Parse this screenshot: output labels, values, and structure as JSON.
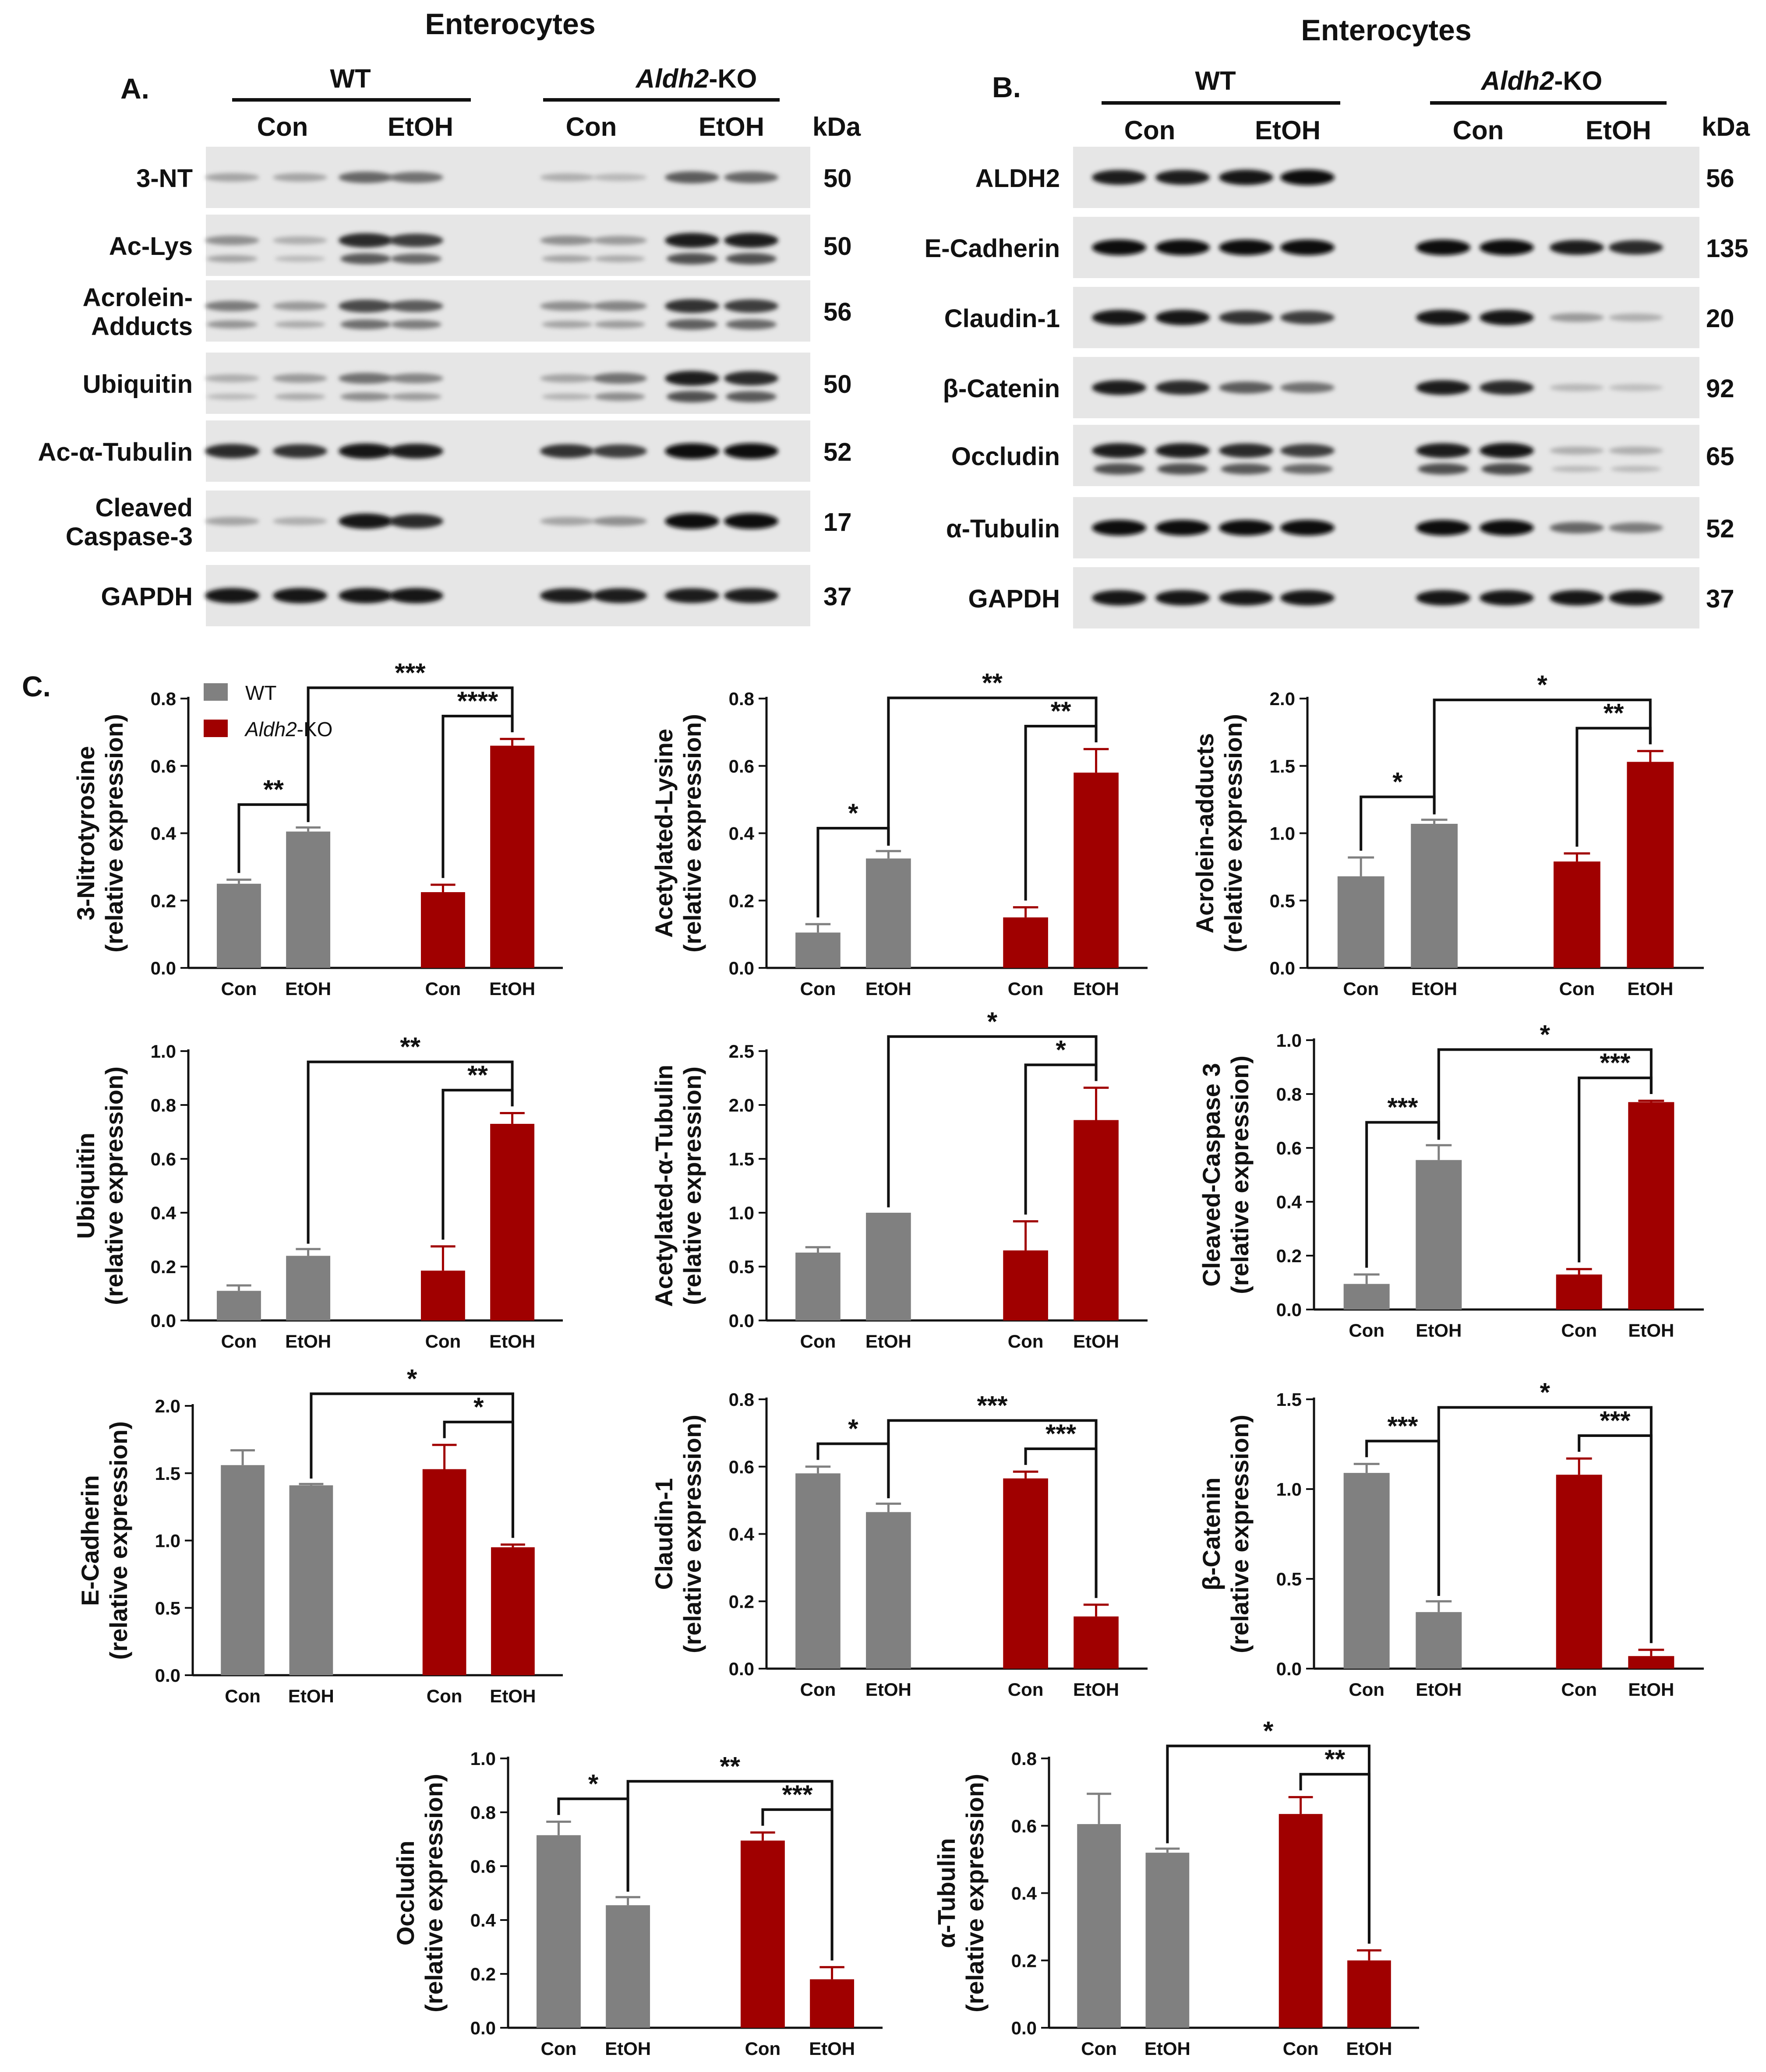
{
  "panel_a": {
    "letter": "A.",
    "title": "Enterocytes",
    "group_wt": "WT",
    "group_ko": "Aldh2-KO",
    "group_ko_italic": "Aldh2",
    "group_ko_suffix": "-KO",
    "con_label": "Con",
    "etoh_label": "EtOH",
    "kda_label": "kDa",
    "blots": [
      {
        "label_lines": [
          "3-NT"
        ],
        "kda": "50",
        "intensity": [
          0.25,
          0.25,
          0.55,
          0.5,
          0.2,
          0.15,
          0.6,
          0.55
        ],
        "double": false
      },
      {
        "label_lines": [
          "Ac-Lys"
        ],
        "kda": "50",
        "intensity": [
          0.35,
          0.2,
          0.85,
          0.75,
          0.35,
          0.3,
          0.9,
          0.9
        ],
        "double": true
      },
      {
        "label_lines": [
          "Acrolein-",
          "Adducts"
        ],
        "kda": "56",
        "intensity": [
          0.45,
          0.3,
          0.7,
          0.6,
          0.35,
          0.4,
          0.8,
          0.75
        ],
        "double": true
      },
      {
        "label_lines": [
          "Ubiquitin"
        ],
        "kda": "50",
        "intensity": [
          0.2,
          0.3,
          0.5,
          0.4,
          0.25,
          0.5,
          0.9,
          0.85
        ],
        "double": true
      },
      {
        "label_lines": [
          "Ac-α-Tubulin"
        ],
        "kda": "52",
        "intensity": [
          0.85,
          0.8,
          0.95,
          0.9,
          0.8,
          0.75,
          1.0,
          1.0
        ],
        "double": false
      },
      {
        "label_lines": [
          "Cleaved",
          "Caspase-3"
        ],
        "kda": "17",
        "intensity": [
          0.25,
          0.2,
          0.95,
          0.85,
          0.25,
          0.35,
          1.0,
          1.0
        ],
        "double": false
      },
      {
        "label_lines": [
          "GAPDH"
        ],
        "kda": "37",
        "intensity": [
          0.95,
          0.95,
          0.95,
          0.95,
          0.9,
          0.9,
          0.9,
          0.9
        ],
        "double": false
      }
    ]
  },
  "panel_b": {
    "letter": "B.",
    "title": "Enterocytes",
    "group_wt": "WT",
    "group_ko": "Aldh2-KO",
    "group_ko_italic": "Aldh2",
    "group_ko_suffix": "-KO",
    "con_label": "Con",
    "etoh_label": "EtOH",
    "kda_label": "kDa",
    "blots": [
      {
        "label_lines": [
          "ALDH2"
        ],
        "kda": "56",
        "intensity": [
          0.9,
          0.9,
          0.95,
          1.0,
          0.0,
          0.0,
          0.0,
          0.0
        ],
        "double": false
      },
      {
        "label_lines": [
          "E-Cadherin"
        ],
        "kda": "135",
        "intensity": [
          1.0,
          1.0,
          1.0,
          1.0,
          1.0,
          1.0,
          0.9,
          0.85
        ],
        "double": false
      },
      {
        "label_lines": [
          "Claudin-1"
        ],
        "kda": "20",
        "intensity": [
          0.95,
          0.95,
          0.8,
          0.75,
          0.95,
          0.95,
          0.3,
          0.2
        ],
        "double": false
      },
      {
        "label_lines": [
          "β-Catenin"
        ],
        "kda": "92",
        "intensity": [
          0.9,
          0.85,
          0.6,
          0.5,
          0.9,
          0.85,
          0.15,
          0.12
        ],
        "double": false
      },
      {
        "label_lines": [
          "Occludin"
        ],
        "kda": "65",
        "intensity": [
          0.9,
          0.9,
          0.85,
          0.75,
          0.9,
          0.95,
          0.2,
          0.2
        ],
        "double": true
      },
      {
        "label_lines": [
          "α-Tubulin"
        ],
        "kda": "52",
        "intensity": [
          1.0,
          1.0,
          1.0,
          1.0,
          1.0,
          1.0,
          0.55,
          0.45
        ],
        "double": false
      },
      {
        "label_lines": [
          "GAPDH"
        ],
        "kda": "37",
        "intensity": [
          0.95,
          0.95,
          0.95,
          0.95,
          0.95,
          0.95,
          0.95,
          0.95
        ],
        "double": false
      }
    ]
  },
  "panel_c": {
    "letter": "C.",
    "legend": [
      {
        "name": "WT",
        "color": "#808080"
      },
      {
        "name": "Aldh2-KO",
        "italic": "Aldh2",
        "suffix": "-KO",
        "color": "#a00000"
      }
    ]
  },
  "colors": {
    "wt": "#808080",
    "ko": "#a00000",
    "text": "#111111"
  },
  "chart_data": [
    {
      "type": "bar",
      "ylabel": "3-Nitrotyrosine",
      "ylabel2": "(relative expression)",
      "categories": [
        "Con",
        "EtOH",
        "Con",
        "EtOH"
      ],
      "groups": [
        "WT",
        "WT",
        "Aldh2-KO",
        "Aldh2-KO"
      ],
      "values": [
        0.25,
        0.405,
        0.225,
        0.66
      ],
      "errors": [
        0.012,
        0.012,
        0.022,
        0.02
      ],
      "ylim": [
        0,
        0.8
      ],
      "yticks": [
        "0.0",
        "0.2",
        "0.4",
        "0.6",
        "0.8"
      ],
      "tickvals": [
        0,
        0.2,
        0.4,
        0.6,
        0.8
      ],
      "annotations": [
        {
          "from": 0,
          "to": 1,
          "label": "**"
        },
        {
          "from": 2,
          "to": 3,
          "label": "****"
        },
        {
          "from": 1,
          "to": 3,
          "label": "***"
        }
      ]
    },
    {
      "type": "bar",
      "ylabel": "Acetylated-Lysine",
      "ylabel2": "(relative expression)",
      "categories": [
        "Con",
        "EtOH",
        "Con",
        "EtOH"
      ],
      "groups": [
        "WT",
        "WT",
        "Aldh2-KO",
        "Aldh2-KO"
      ],
      "values": [
        0.105,
        0.325,
        0.15,
        0.58
      ],
      "errors": [
        0.025,
        0.022,
        0.03,
        0.07
      ],
      "ylim": [
        0,
        0.8
      ],
      "yticks": [
        "0.0",
        "0.2",
        "0.4",
        "0.6",
        "0.8"
      ],
      "tickvals": [
        0,
        0.2,
        0.4,
        0.6,
        0.8
      ],
      "annotations": [
        {
          "from": 0,
          "to": 1,
          "label": "*"
        },
        {
          "from": 2,
          "to": 3,
          "label": "**"
        },
        {
          "from": 1,
          "to": 3,
          "label": "**"
        }
      ]
    },
    {
      "type": "bar",
      "ylabel": "Acrolein-adducts",
      "ylabel2": "(relative expression)",
      "categories": [
        "Con",
        "EtOH",
        "Con",
        "EtOH"
      ],
      "groups": [
        "WT",
        "WT",
        "Aldh2-KO",
        "Aldh2-KO"
      ],
      "values": [
        0.68,
        1.07,
        0.79,
        1.53
      ],
      "errors": [
        0.14,
        0.03,
        0.06,
        0.08
      ],
      "ylim": [
        0,
        2.0
      ],
      "yticks": [
        "0.0",
        "0.5",
        "1.0",
        "1.5",
        "2.0"
      ],
      "tickvals": [
        0,
        0.5,
        1.0,
        1.5,
        2.0
      ],
      "annotations": [
        {
          "from": 0,
          "to": 1,
          "label": "*"
        },
        {
          "from": 2,
          "to": 3,
          "label": "**"
        },
        {
          "from": 1,
          "to": 3,
          "label": "*"
        }
      ]
    },
    {
      "type": "bar",
      "ylabel": "Ubiquitin",
      "ylabel2": "(relative expression)",
      "categories": [
        "Con",
        "EtOH",
        "Con",
        "EtOH"
      ],
      "groups": [
        "WT",
        "WT",
        "Aldh2-KO",
        "Aldh2-KO"
      ],
      "values": [
        0.11,
        0.24,
        0.185,
        0.73
      ],
      "errors": [
        0.02,
        0.025,
        0.09,
        0.04
      ],
      "ylim": [
        0,
        1.0
      ],
      "yticks": [
        "0.0",
        "0.2",
        "0.4",
        "0.6",
        "0.8",
        "1.0"
      ],
      "tickvals": [
        0,
        0.2,
        0.4,
        0.6,
        0.8,
        1.0
      ],
      "annotations": [
        {
          "from": 2,
          "to": 3,
          "label": "**"
        },
        {
          "from": 1,
          "to": 3,
          "label": "**"
        }
      ]
    },
    {
      "type": "bar",
      "ylabel": "Acetylated-α-Tubulin",
      "ylabel2": "(relative expression)",
      "categories": [
        "Con",
        "EtOH",
        "Con",
        "EtOH"
      ],
      "groups": [
        "WT",
        "WT",
        "Aldh2-KO",
        "Aldh2-KO"
      ],
      "values": [
        0.63,
        1.0,
        0.65,
        1.86
      ],
      "errors": [
        0.05,
        0.0,
        0.27,
        0.3
      ],
      "ylim": [
        0,
        2.5
      ],
      "yticks": [
        "0.0",
        "0.5",
        "1.0",
        "1.5",
        "2.0",
        "2.5"
      ],
      "tickvals": [
        0,
        0.5,
        1.0,
        1.5,
        2.0,
        2.5
      ],
      "annotations": [
        {
          "from": 2,
          "to": 3,
          "label": "*"
        },
        {
          "from": 1,
          "to": 3,
          "label": "*"
        }
      ]
    },
    {
      "type": "bar",
      "ylabel": "Cleaved-Caspase 3",
      "ylabel2": "(relative expression)",
      "categories": [
        "Con",
        "EtOH",
        "Con",
        "EtOH"
      ],
      "groups": [
        "WT",
        "WT",
        "Aldh2-KO",
        "Aldh2-KO"
      ],
      "values": [
        0.095,
        0.555,
        0.13,
        0.77
      ],
      "errors": [
        0.035,
        0.055,
        0.02,
        0.005
      ],
      "ylim": [
        0,
        1.0
      ],
      "yticks": [
        "0.0",
        "0.2",
        "0.4",
        "0.6",
        "0.8",
        "1.0"
      ],
      "tickvals": [
        0,
        0.2,
        0.4,
        0.6,
        0.8,
        1.0
      ],
      "annotations": [
        {
          "from": 0,
          "to": 1,
          "label": "***"
        },
        {
          "from": 2,
          "to": 3,
          "label": "***"
        },
        {
          "from": 1,
          "to": 3,
          "label": "*"
        }
      ]
    },
    {
      "type": "bar",
      "ylabel": "E-Cadherin",
      "ylabel2": "(relative expression)",
      "categories": [
        "Con",
        "EtOH",
        "Con",
        "EtOH"
      ],
      "groups": [
        "WT",
        "WT",
        "Aldh2-KO",
        "Aldh2-KO"
      ],
      "values": [
        1.56,
        1.41,
        1.53,
        0.95
      ],
      "errors": [
        0.11,
        0.01,
        0.18,
        0.02
      ],
      "ylim": [
        0,
        2.0
      ],
      "yticks": [
        "0.0",
        "0.5",
        "1.0",
        "1.5",
        "2.0"
      ],
      "tickvals": [
        0,
        0.5,
        1.0,
        1.5,
        2.0
      ],
      "annotations": [
        {
          "from": 2,
          "to": 3,
          "label": "*"
        },
        {
          "from": 1,
          "to": 3,
          "label": "*"
        }
      ]
    },
    {
      "type": "bar",
      "ylabel": "Claudin-1",
      "ylabel2": "(relative expression)",
      "categories": [
        "Con",
        "EtOH",
        "Con",
        "EtOH"
      ],
      "groups": [
        "WT",
        "WT",
        "Aldh2-KO",
        "Aldh2-KO"
      ],
      "values": [
        0.58,
        0.465,
        0.565,
        0.155
      ],
      "errors": [
        0.02,
        0.025,
        0.02,
        0.035
      ],
      "ylim": [
        0,
        0.8
      ],
      "yticks": [
        "0.0",
        "0.2",
        "0.4",
        "0.6",
        "0.8"
      ],
      "tickvals": [
        0,
        0.2,
        0.4,
        0.6,
        0.8
      ],
      "annotations": [
        {
          "from": 0,
          "to": 1,
          "label": "*"
        },
        {
          "from": 2,
          "to": 3,
          "label": "***"
        },
        {
          "from": 1,
          "to": 3,
          "label": "***"
        }
      ]
    },
    {
      "type": "bar",
      "ylabel": "β-Catenin",
      "ylabel2": "(relative expression)",
      "categories": [
        "Con",
        "EtOH",
        "Con",
        "EtOH"
      ],
      "groups": [
        "WT",
        "WT",
        "Aldh2-KO",
        "Aldh2-KO"
      ],
      "values": [
        1.09,
        0.315,
        1.08,
        0.07
      ],
      "errors": [
        0.05,
        0.06,
        0.09,
        0.035
      ],
      "ylim": [
        0,
        1.5
      ],
      "yticks": [
        "0.0",
        "0.5",
        "1.0",
        "1.5"
      ],
      "tickvals": [
        0,
        0.5,
        1.0,
        1.5
      ],
      "annotations": [
        {
          "from": 0,
          "to": 1,
          "label": "***"
        },
        {
          "from": 2,
          "to": 3,
          "label": "***"
        },
        {
          "from": 1,
          "to": 3,
          "label": "*"
        }
      ]
    },
    {
      "type": "bar",
      "ylabel": "Occludin",
      "ylabel2": "(relative expression)",
      "categories": [
        "Con",
        "EtOH",
        "Con",
        "EtOH"
      ],
      "groups": [
        "WT",
        "WT",
        "Aldh2-KO",
        "Aldh2-KO"
      ],
      "values": [
        0.715,
        0.455,
        0.695,
        0.18
      ],
      "errors": [
        0.05,
        0.03,
        0.03,
        0.045
      ],
      "ylim": [
        0,
        1.0
      ],
      "yticks": [
        "0.0",
        "0.2",
        "0.4",
        "0.6",
        "0.8",
        "1.0"
      ],
      "tickvals": [
        0,
        0.2,
        0.4,
        0.6,
        0.8,
        1.0
      ],
      "annotations": [
        {
          "from": 0,
          "to": 1,
          "label": "*"
        },
        {
          "from": 2,
          "to": 3,
          "label": "***"
        },
        {
          "from": 1,
          "to": 3,
          "label": "**"
        }
      ]
    },
    {
      "type": "bar",
      "ylabel": "α-Tubulin",
      "ylabel2": "(relative expression)",
      "categories": [
        "Con",
        "EtOH",
        "Con",
        "EtOH"
      ],
      "groups": [
        "WT",
        "WT",
        "Aldh2-KO",
        "Aldh2-KO"
      ],
      "values": [
        0.605,
        0.52,
        0.635,
        0.2
      ],
      "errors": [
        0.09,
        0.012,
        0.05,
        0.03
      ],
      "ylim": [
        0,
        0.8
      ],
      "yticks": [
        "0.0",
        "0.2",
        "0.4",
        "0.6",
        "0.8"
      ],
      "tickvals": [
        0,
        0.2,
        0.4,
        0.6,
        0.8
      ],
      "annotations": [
        {
          "from": 2,
          "to": 3,
          "label": "**"
        },
        {
          "from": 1,
          "to": 3,
          "label": "*"
        }
      ]
    }
  ]
}
